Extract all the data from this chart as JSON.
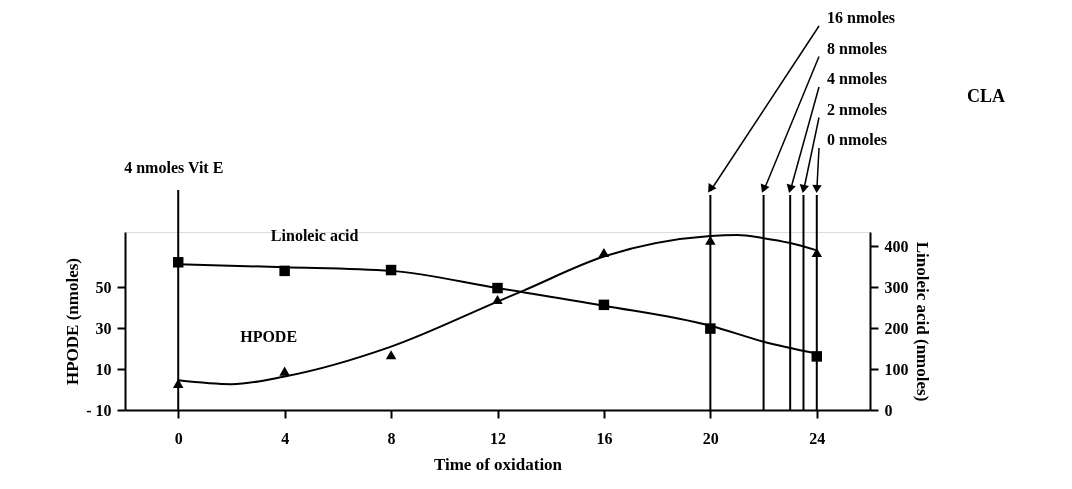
{
  "chart_data": {
    "type": "scatter",
    "xlabel": "Time of oxidation",
    "ylabel": "HPODE (nmoles)",
    "y2label": "Linoleic acid (nmoles)",
    "x": [
      0,
      4,
      8,
      12,
      16,
      20,
      24
    ],
    "series": [
      {
        "name": "HPODE",
        "marker": "triangle",
        "color": "#000000",
        "values": [
          3,
          9,
          17,
          44,
          67,
          73,
          67
        ]
      },
      {
        "type": "line",
        "marker": "none",
        "color": "#000000",
        "x": [
          0,
          2,
          4,
          8,
          12,
          13,
          16,
          20,
          21,
          22,
          23,
          24
        ],
        "values": [
          4.5,
          2.6,
          6.4,
          21,
          43,
          48.5,
          65,
          75,
          75.5,
          74,
          71.6,
          68
        ]
      },
      {
        "name": "Linoleic acid",
        "marker": "square",
        "axis": "y2",
        "color": "#000000",
        "values": [
          361,
          340,
          342,
          298,
          257,
          199,
          131
        ]
      },
      {
        "type": "line",
        "marker": "none",
        "axis": "y2",
        "color": "#000000",
        "x": [
          0,
          4,
          8,
          12,
          16,
          20,
          22,
          24
        ],
        "values": [
          356,
          349,
          340,
          298,
          255,
          206,
          167,
          138
        ]
      }
    ],
    "xlim": [
      -2,
      26
    ],
    "xticks": [
      0,
      4,
      8,
      12,
      16,
      20,
      24
    ],
    "ylim": [
      -10,
      77
    ],
    "yticks": [
      {
        "value": -10,
        "label": "- 10"
      },
      10,
      30,
      50
    ],
    "y2lim": [
      0,
      435
    ],
    "y2ticks": [
      0,
      100,
      200,
      300,
      400
    ],
    "ref_lines": [
      {
        "axis": "x",
        "value": 0,
        "label": "4 nmoles Vit E",
        "color": "#000000"
      },
      {
        "axis": "x",
        "value": 20,
        "label": "16 nmoles",
        "color": "#000000"
      },
      {
        "axis": "x",
        "value": 22,
        "label": "8 nmoles",
        "color": "#000000"
      },
      {
        "axis": "x",
        "value": 23,
        "label": "4 nmoles",
        "color": "#000000"
      },
      {
        "axis": "x",
        "value": 23.5,
        "label": "2 nmoles",
        "color": "#000000"
      },
      {
        "axis": "x",
        "value": 24,
        "label": "0 nmoles",
        "color": "#000000"
      }
    ],
    "annotations": [
      "CLA"
    ],
    "grid": false,
    "legend": false
  }
}
